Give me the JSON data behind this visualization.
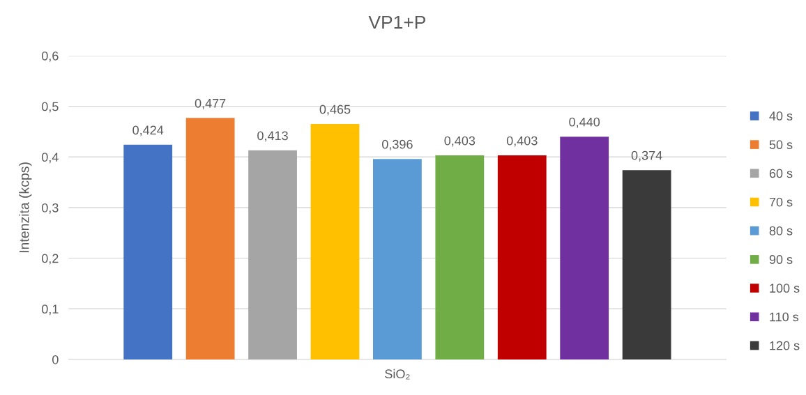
{
  "chart_data": {
    "type": "bar",
    "title": "VP1+P",
    "ylabel": "Intenzita (kcps)",
    "categories": [
      "SiO₂"
    ],
    "series": [
      {
        "name": "40 s",
        "color": "#4472c4",
        "values": [
          0.424
        ],
        "value_labels": [
          "0,424"
        ]
      },
      {
        "name": "50 s",
        "color": "#ed7d31",
        "values": [
          0.477
        ],
        "value_labels": [
          "0,477"
        ]
      },
      {
        "name": "60 s",
        "color": "#a5a5a5",
        "values": [
          0.413
        ],
        "value_labels": [
          "0,413"
        ]
      },
      {
        "name": "70 s",
        "color": "#ffc000",
        "values": [
          0.465
        ],
        "value_labels": [
          "0,465"
        ]
      },
      {
        "name": "80 s",
        "color": "#5b9bd5",
        "values": [
          0.396
        ],
        "value_labels": [
          "0,396"
        ]
      },
      {
        "name": "90 s",
        "color": "#70ad47",
        "values": [
          0.403
        ],
        "value_labels": [
          "0,403"
        ]
      },
      {
        "name": "100 s",
        "color": "#c00000",
        "values": [
          0.403
        ],
        "value_labels": [
          "0,403"
        ]
      },
      {
        "name": "110 s",
        "color": "#7030a0",
        "values": [
          0.44
        ],
        "value_labels": [
          "0,440"
        ]
      },
      {
        "name": "120 s",
        "color": "#3a3a3a",
        "values": [
          0.374
        ],
        "value_labels": [
          "0,374"
        ]
      }
    ],
    "ylim": [
      0,
      0.6
    ],
    "yticks": [
      0,
      {
        "value": 0.1,
        "label": "0,1"
      },
      {
        "value": 0.2,
        "label": "0,2"
      },
      {
        "value": 0.3,
        "label": "0,3"
      },
      {
        "value": 0.4,
        "label": "0,4"
      },
      {
        "value": 0.5,
        "label": "0,5"
      },
      {
        "value": 0.6,
        "label": "0,6"
      }
    ],
    "grid": "y",
    "legend": "right"
  }
}
